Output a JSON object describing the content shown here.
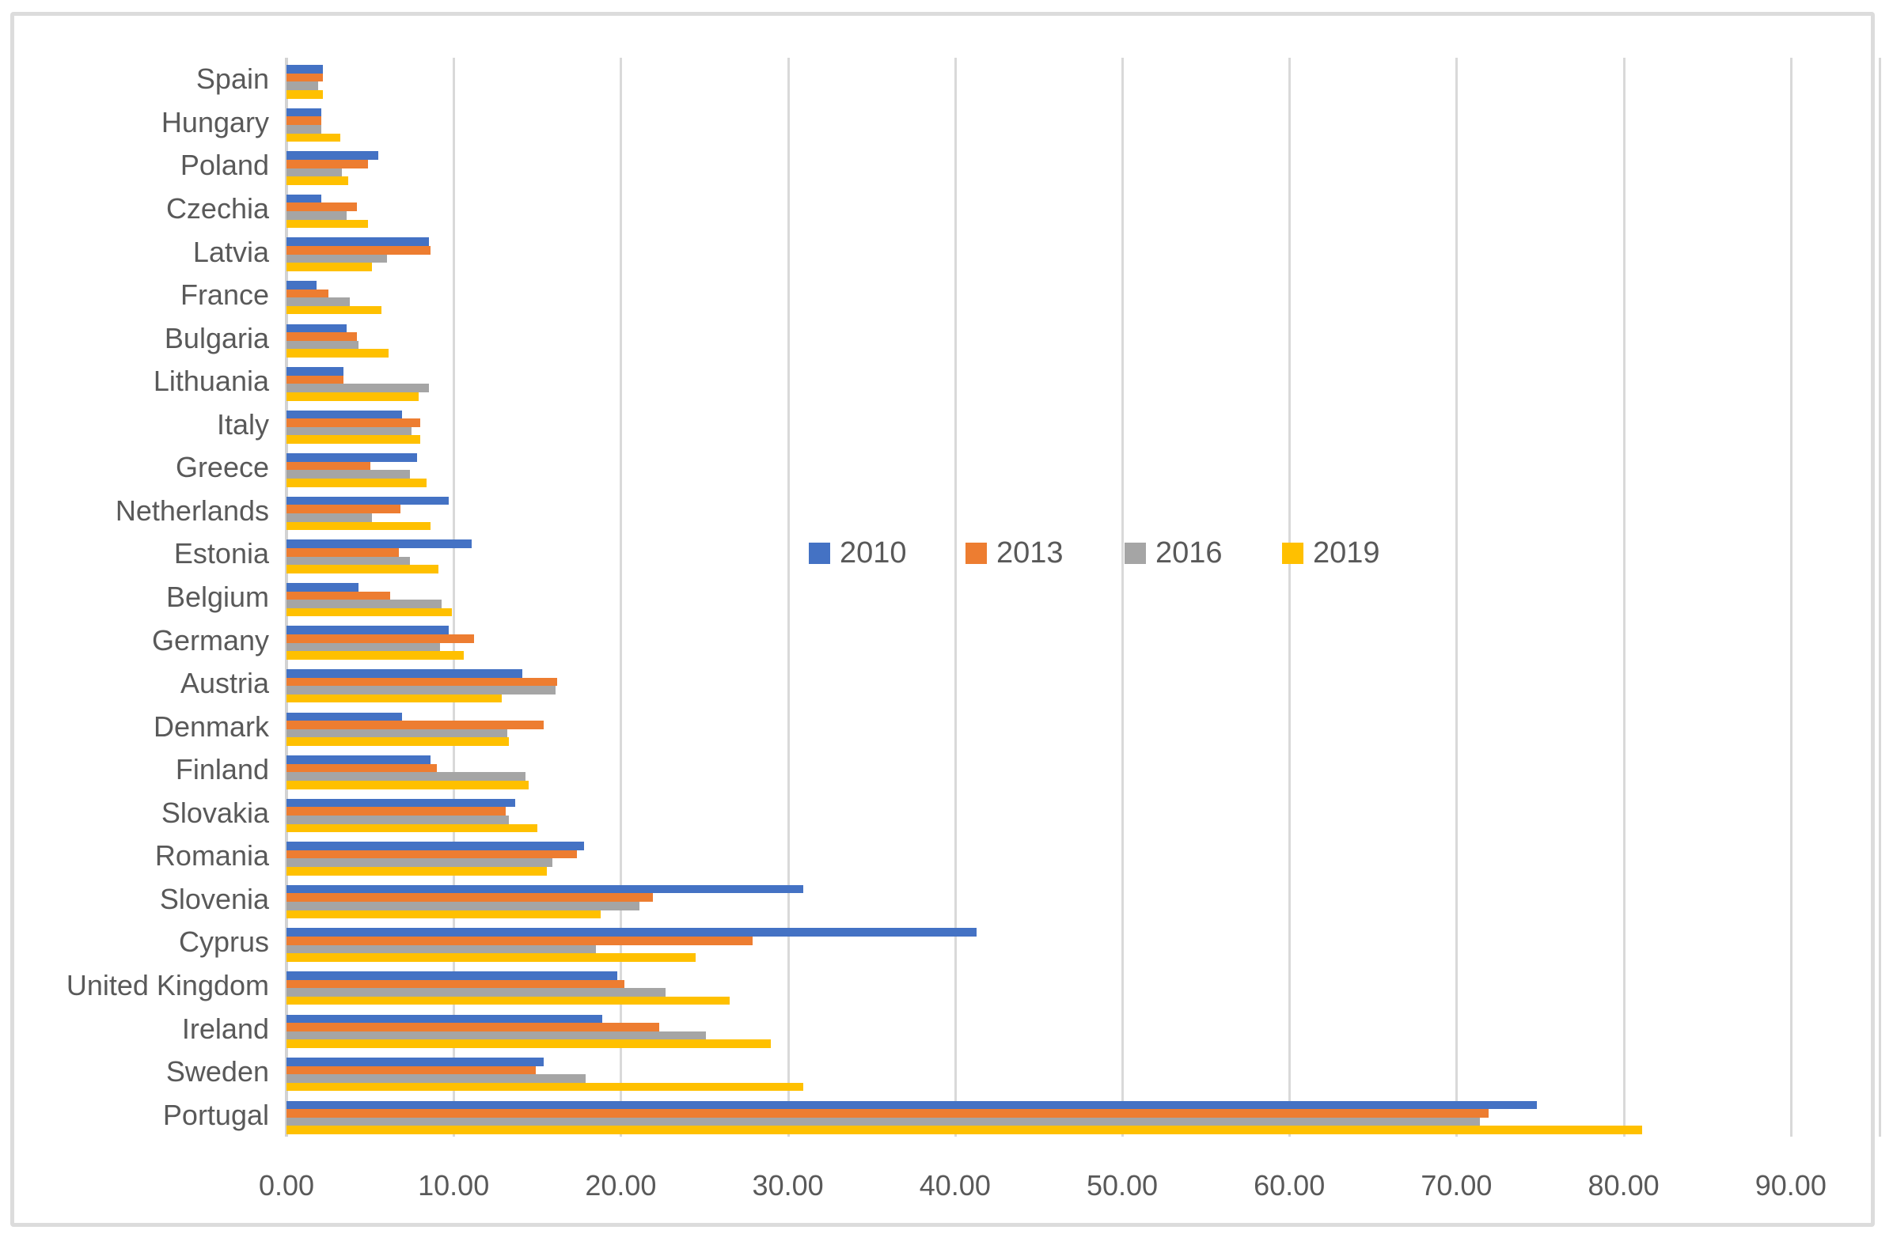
{
  "chart_data": {
    "type": "bar",
    "orientation": "horizontal",
    "title": "",
    "xlabel": "",
    "ylabel": "",
    "grid": true,
    "categories": [
      "Spain",
      "Hungary",
      "Poland",
      "Czechia",
      "Latvia",
      "France",
      "Bulgaria",
      "Lithuania",
      "Italy",
      "Greece",
      "Netherlands",
      "Estonia",
      "Belgium",
      "Germany",
      "Austria",
      "Denmark",
      "Finland",
      "Slovakia",
      "Romania",
      "Slovenia",
      "Cyprus",
      "United Kingdom",
      "Ireland",
      "Sweden",
      "Portugal"
    ],
    "series": [
      {
        "name": "2010",
        "color": "#4472C4",
        "values": [
          2.2,
          2.1,
          5.5,
          2.1,
          8.5,
          1.8,
          3.6,
          3.4,
          6.9,
          7.8,
          9.7,
          11.1,
          4.3,
          9.7,
          14.1,
          6.9,
          8.6,
          13.7,
          17.8,
          30.9,
          41.3,
          19.8,
          18.9,
          15.4,
          74.8
        ]
      },
      {
        "name": "2013",
        "color": "#ED7D31",
        "values": [
          2.2,
          2.1,
          4.9,
          4.2,
          8.6,
          2.5,
          4.2,
          3.4,
          8.0,
          5.0,
          6.8,
          6.7,
          6.2,
          11.2,
          16.2,
          15.4,
          9.0,
          13.1,
          17.4,
          21.9,
          27.9,
          20.2,
          22.3,
          14.9,
          71.9
        ]
      },
      {
        "name": "2016",
        "color": "#A5A5A5",
        "values": [
          1.9,
          2.1,
          3.3,
          3.6,
          6.0,
          3.8,
          4.3,
          8.5,
          7.5,
          7.4,
          5.1,
          7.4,
          9.3,
          9.2,
          16.1,
          13.2,
          14.3,
          13.3,
          15.9,
          21.1,
          18.5,
          22.7,
          25.1,
          17.9,
          71.4
        ]
      },
      {
        "name": "2019",
        "color": "#FFC000",
        "values": [
          2.2,
          3.2,
          3.7,
          4.9,
          5.1,
          5.7,
          6.1,
          7.9,
          8.0,
          8.4,
          8.6,
          9.1,
          9.9,
          10.6,
          12.9,
          13.3,
          14.5,
          15.0,
          15.6,
          18.8,
          24.5,
          26.5,
          29.0,
          30.9,
          81.1
        ]
      }
    ],
    "x_axis": {
      "min": 0,
      "max": 90,
      "tick_step": 10,
      "tick_labels": [
        "0.00",
        "10.00",
        "20.00",
        "30.00",
        "40.00",
        "50.00",
        "60.00",
        "70.00",
        "80.00",
        "90.00"
      ]
    },
    "legend": {
      "position": "middle-right-of-plot",
      "entries": [
        "2010",
        "2013",
        "2016",
        "2019"
      ]
    }
  },
  "colors": {
    "series_2010": "#4472C4",
    "series_2013": "#ED7D31",
    "series_2016": "#A5A5A5",
    "series_2019": "#FFC000",
    "gridline": "#d9d9d9",
    "text": "#595959",
    "frame_border": "#dcdcdc"
  }
}
